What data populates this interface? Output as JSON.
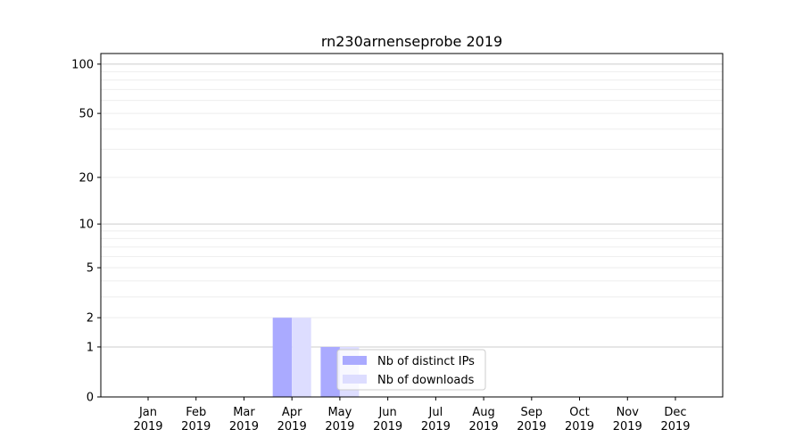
{
  "chart_data": {
    "type": "bar",
    "title": "rn230arnenseprobe 2019",
    "xlabel": "",
    "ylabel": "",
    "yscale": "log(1+y)",
    "ylim": [
      0,
      116
    ],
    "yticks": [
      0,
      1,
      2,
      5,
      10,
      20,
      50,
      100
    ],
    "ytick_labels": [
      "0",
      "1",
      "2",
      "5",
      "10",
      "20",
      "50",
      "100"
    ],
    "grid": true,
    "legend_position": "bottom-center",
    "categories": [
      [
        "Jan",
        "2019"
      ],
      [
        "Feb",
        "2019"
      ],
      [
        "Mar",
        "2019"
      ],
      [
        "Apr",
        "2019"
      ],
      [
        "May",
        "2019"
      ],
      [
        "Jun",
        "2019"
      ],
      [
        "Jul",
        "2019"
      ],
      [
        "Aug",
        "2019"
      ],
      [
        "Sep",
        "2019"
      ],
      [
        "Oct",
        "2019"
      ],
      [
        "Nov",
        "2019"
      ],
      [
        "Dec",
        "2019"
      ]
    ],
    "series": [
      {
        "name": "Nb of distinct IPs",
        "color": "#aaaaff",
        "values": [
          0,
          0,
          0,
          2,
          1,
          0,
          0,
          0,
          0,
          0,
          0,
          0
        ]
      },
      {
        "name": "Nb of downloads",
        "color": "#ddddff",
        "values": [
          0,
          0,
          0,
          2,
          1,
          0,
          0,
          0,
          0,
          0,
          0,
          0
        ]
      }
    ]
  }
}
